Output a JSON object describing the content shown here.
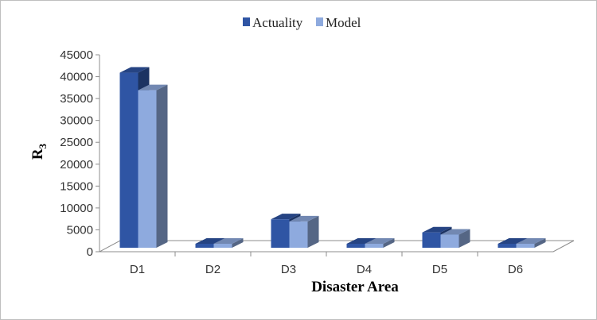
{
  "chart_data": {
    "type": "bar",
    "title": "",
    "xlabel": "Disaster Area",
    "ylabel_main": "R",
    "ylabel_sub": "3",
    "categories": [
      "D1",
      "D2",
      "D3",
      "D4",
      "D5",
      "D6"
    ],
    "series": [
      {
        "name": "Actuality",
        "values": [
          40000,
          200,
          6500,
          900,
          3500,
          800
        ],
        "color": "#2f55a4"
      },
      {
        "name": "Model",
        "values": [
          36000,
          150,
          6000,
          700,
          3000,
          600
        ],
        "color": "#8eaade"
      }
    ],
    "ylim": [
      0,
      45000
    ],
    "yticks": [
      "0",
      "5000",
      "10000",
      "15000",
      "20000",
      "25000",
      "30000",
      "35000",
      "40000",
      "45000"
    ],
    "legend_position": "top"
  }
}
